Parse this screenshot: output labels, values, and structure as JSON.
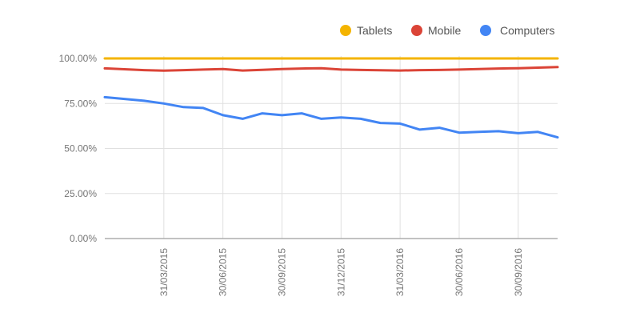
{
  "chart_data": {
    "type": "line",
    "title": "",
    "xlabel": "",
    "ylabel": "",
    "ylim": [
      0,
      100
    ],
    "yticks": [
      "0.00%",
      "25.00%",
      "50.00%",
      "75.00%",
      "100.00%"
    ],
    "ytick_values": [
      0,
      25,
      50,
      75,
      100
    ],
    "xticks": [
      "31/03/2015",
      "30/06/2015",
      "30/09/2015",
      "31/12/2015",
      "31/03/2016",
      "30/06/2016",
      "30/09/2016"
    ],
    "x": [
      "31/12/2014",
      "31/01/2015",
      "28/02/2015",
      "31/03/2015",
      "30/04/2015",
      "31/05/2015",
      "30/06/2015",
      "31/07/2015",
      "31/08/2015",
      "30/09/2015",
      "31/10/2015",
      "30/11/2015",
      "31/12/2015",
      "31/01/2016",
      "29/02/2016",
      "31/03/2016",
      "30/04/2016",
      "31/05/2016",
      "30/06/2016",
      "31/07/2016",
      "31/08/2016",
      "30/09/2016",
      "31/10/2016",
      "30/11/2016"
    ],
    "grid": true,
    "legend_position": "top-right",
    "series": [
      {
        "name": "Tablets",
        "color": "#f4b400",
        "values": [
          100,
          100,
          100,
          100,
          100,
          100,
          100,
          100,
          100,
          100,
          100,
          100,
          100,
          100,
          100,
          100,
          100,
          100,
          100,
          100,
          100,
          100,
          100,
          100
        ]
      },
      {
        "name": "Mobile",
        "color": "#db4437",
        "values": [
          94.5,
          94,
          93.5,
          93.2,
          93.5,
          93.8,
          94.1,
          93.3,
          93.7,
          94.1,
          94.4,
          94.6,
          93.8,
          93.6,
          93.4,
          93.3,
          93.5,
          93.6,
          93.8,
          94.1,
          94.4,
          94.6,
          94.9,
          95.2
        ]
      },
      {
        "name": "Computers",
        "color": "#4285f4",
        "values": [
          78.5,
          77.5,
          76.5,
          75,
          73,
          72.5,
          68.5,
          66.5,
          69.5,
          68.5,
          69.5,
          66.5,
          67.2,
          66.5,
          64.2,
          63.8,
          60.5,
          61.5,
          58.8,
          59.2,
          59.6,
          58.5,
          59.2,
          56.2
        ]
      }
    ]
  }
}
